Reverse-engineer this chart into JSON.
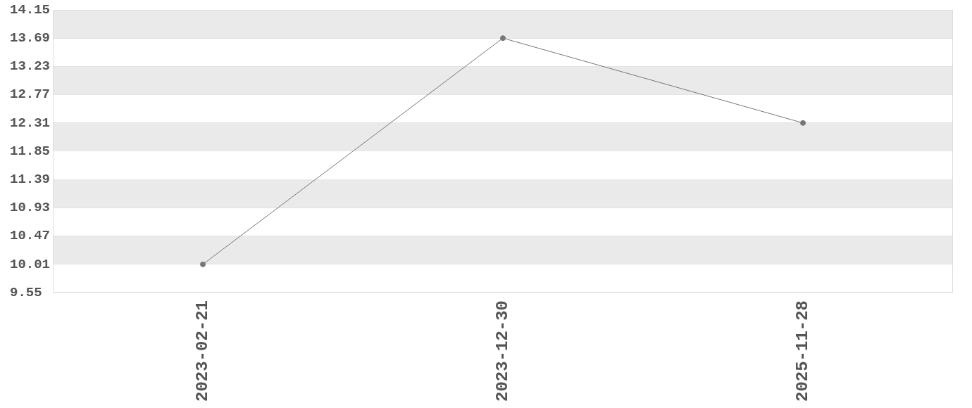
{
  "chart_data": {
    "type": "line",
    "categories": [
      "2023-02-21",
      "2023-12-30",
      "2025-11-28"
    ],
    "series": [
      {
        "color": "#777777",
        "values": [
          10.01,
          13.69,
          12.31
        ]
      }
    ],
    "ylim": [
      9.55,
      14.15
    ],
    "yticks": [
      9.55,
      10.01,
      10.47,
      10.93,
      11.39,
      11.85,
      12.31,
      12.77,
      13.23,
      13.69,
      14.15
    ],
    "grid": true,
    "legend": false,
    "marker": "circle",
    "line_style": "solid"
  }
}
